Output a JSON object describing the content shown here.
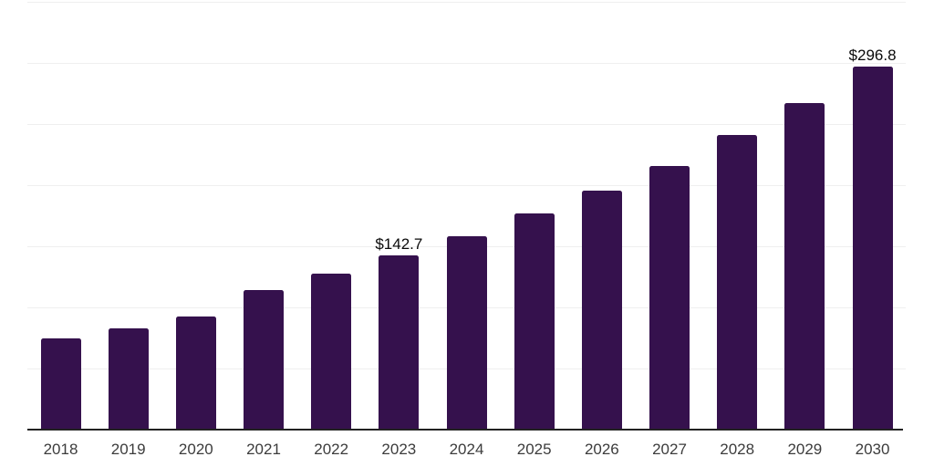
{
  "chart_data": {
    "type": "bar",
    "title": "",
    "xlabel": "",
    "ylabel": "",
    "categories": [
      "2018",
      "2019",
      "2020",
      "2021",
      "2022",
      "2023",
      "2024",
      "2025",
      "2026",
      "2027",
      "2028",
      "2029",
      "2030"
    ],
    "values": [
      74.4,
      82.6,
      92.2,
      114.5,
      127.9,
      142.7,
      158.4,
      177.0,
      195.6,
      215.7,
      241.0,
      267.0,
      296.8
    ],
    "data_labels": {
      "2023": "$142.7",
      "2030": "$296.8"
    },
    "ylim": [
      0,
      350
    ],
    "gridline_step": 50,
    "grid": true,
    "legend": false,
    "y_axis_tick_labels_visible": false,
    "bar_color": "#35114d",
    "gridline_color": "#efefef",
    "axis_line_color": "#222222",
    "tick_label_color": "#3c3c3c",
    "data_label_color": "#0a0a0a",
    "background_color": "#ffffff"
  }
}
